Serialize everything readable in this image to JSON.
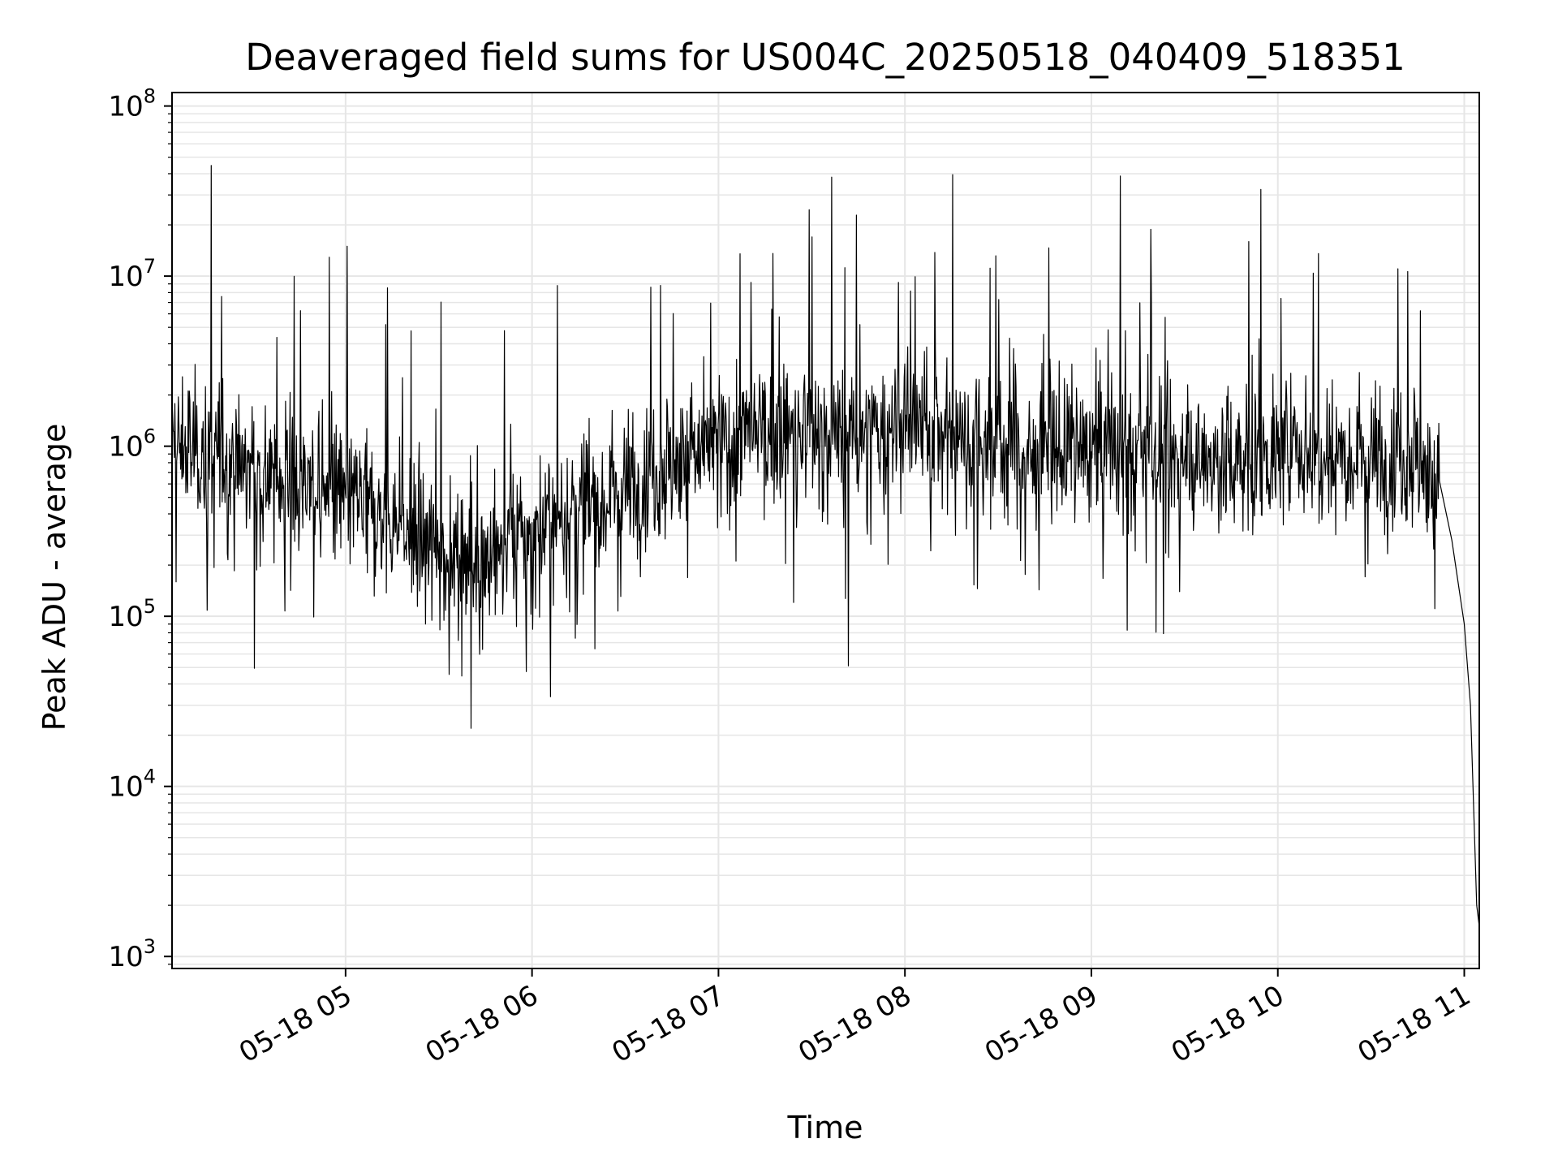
{
  "chart_data": {
    "type": "line",
    "title": "Deaveraged field sums for US004C_20250518_040409_518351",
    "xlabel": "Time",
    "ylabel": "Peak ADU - average",
    "yscale": "log",
    "ylim": [
      850,
      120000000
    ],
    "xlim": [
      "2025-05-18 04:04:09",
      "2025-05-18 11:04:50"
    ],
    "grid": true,
    "x_ticks": [
      "05-18 05",
      "05-18 06",
      "05-18 07",
      "05-18 08",
      "05-18 09",
      "05-18 10",
      "05-18 11"
    ],
    "y_ticks": [
      {
        "base": "10",
        "exp": "3",
        "value": 1000
      },
      {
        "base": "10",
        "exp": "4",
        "value": 10000
      },
      {
        "base": "10",
        "exp": "5",
        "value": 100000
      },
      {
        "base": "10",
        "exp": "6",
        "value": 1000000
      },
      {
        "base": "10",
        "exp": "7",
        "value": 10000000
      },
      {
        "base": "10",
        "exp": "8",
        "value": 100000000
      }
    ],
    "line_color": "#000000",
    "series": [
      {
        "x": [
          "2025-05-18 04:04:09",
          "2025-05-18 04:15:00",
          "2025-05-18 04:30:00",
          "2025-05-18 04:45:00",
          "2025-05-18 05:00:00",
          "2025-05-18 05:15:00",
          "2025-05-18 05:30:00",
          "2025-05-18 05:45:00",
          "2025-05-18 06:00:00",
          "2025-05-18 06:15:00",
          "2025-05-18 06:30:00",
          "2025-05-18 06:45:00",
          "2025-05-18 07:00:00",
          "2025-05-18 07:15:00",
          "2025-05-18 07:30:00",
          "2025-05-18 07:45:00",
          "2025-05-18 08:00:00",
          "2025-05-18 08:15:00",
          "2025-05-18 08:30:00",
          "2025-05-18 08:45:00",
          "2025-05-18 09:00:00",
          "2025-05-18 09:15:00",
          "2025-05-18 09:30:00",
          "2025-05-18 09:45:00",
          "2025-05-18 10:00:00",
          "2025-05-18 10:15:00",
          "2025-05-18 10:30:00",
          "2025-05-18 10:45:00",
          "2025-05-18 10:52:00",
          "2025-05-18 10:56:00",
          "2025-05-18 11:00:00",
          "2025-05-18 11:02:00",
          "2025-05-18 11:04:00",
          "2025-05-18 11:04:50"
        ],
        "y": [
          1000000,
          900000,
          700000,
          600000,
          500000,
          350000,
          250000,
          220000,
          300000,
          450000,
          600000,
          800000,
          1000000,
          1200000,
          1200000,
          1100000,
          1300000,
          1200000,
          1000000,
          900000,
          1000000,
          900000,
          850000,
          800000,
          900000,
          1000000,
          900000,
          900000,
          500000,
          280000,
          90000,
          30000,
          2000,
          1500
        ]
      }
    ]
  }
}
